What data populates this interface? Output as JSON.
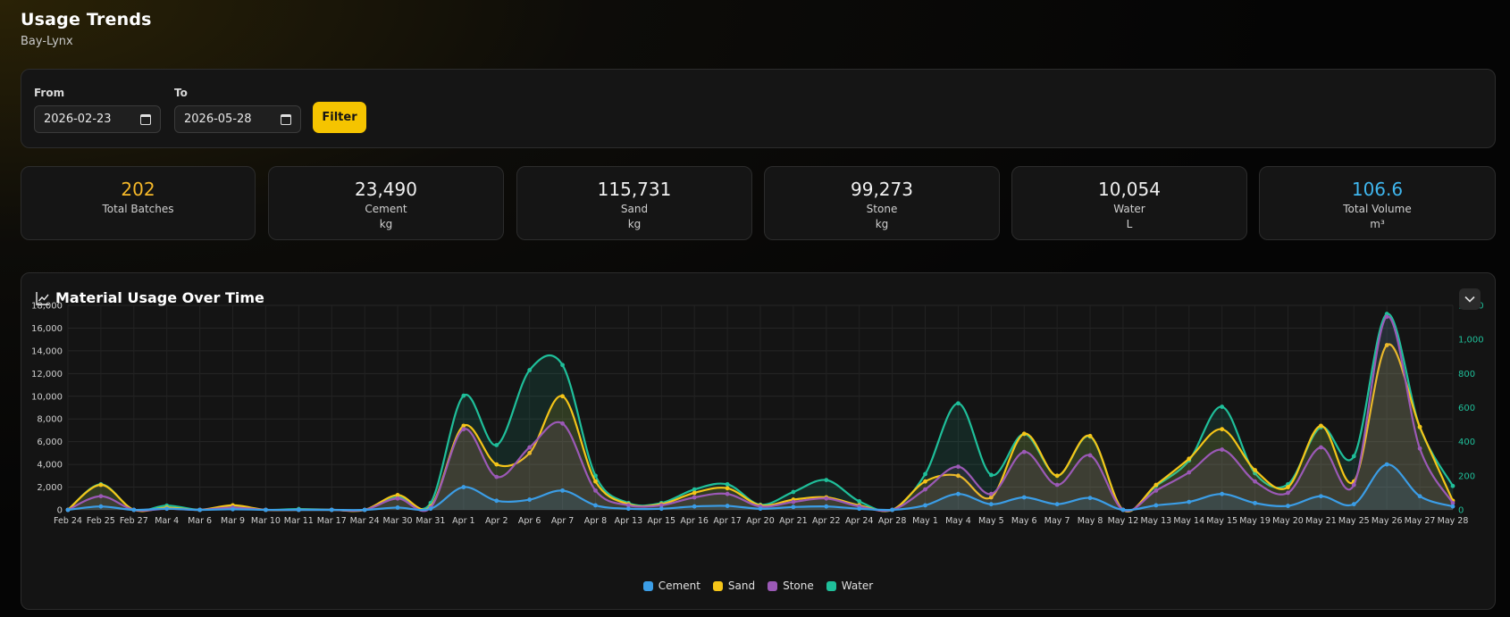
{
  "header": {
    "title": "Usage Trends",
    "subtitle": "Bay-Lynx"
  },
  "filter": {
    "from_label": "From",
    "from_value": "2026-02-23",
    "to_label": "To",
    "to_value": "2026-05-28",
    "button_label": "Filter"
  },
  "stats": [
    {
      "value": "202",
      "label": "Total Batches",
      "unit": "",
      "color": "#f5b829"
    },
    {
      "value": "23,490",
      "label": "Cement",
      "unit": "kg",
      "color": "#f0f0f0"
    },
    {
      "value": "115,731",
      "label": "Sand",
      "unit": "kg",
      "color": "#f0f0f0"
    },
    {
      "value": "99,273",
      "label": "Stone",
      "unit": "kg",
      "color": "#f0f0f0"
    },
    {
      "value": "10,054",
      "label": "Water",
      "unit": "L",
      "color": "#f0f0f0"
    },
    {
      "value": "106.6",
      "label": "Total Volume",
      "unit": "m³",
      "color": "#3fb6ee"
    }
  ],
  "chart_card": {
    "title": "Material Usage Over Time"
  },
  "chart_data": {
    "type": "area",
    "categories": [
      "Feb 24",
      "Feb 25",
      "Feb 27",
      "Mar 4",
      "Mar 6",
      "Mar 9",
      "Mar 10",
      "Mar 11",
      "Mar 17",
      "Mar 24",
      "Mar 30",
      "Mar 31",
      "Apr 1",
      "Apr 2",
      "Apr 6",
      "Apr 7",
      "Apr 8",
      "Apr 13",
      "Apr 15",
      "Apr 16",
      "Apr 17",
      "Apr 20",
      "Apr 21",
      "Apr 22",
      "Apr 24",
      "Apr 28",
      "May 1",
      "May 4",
      "May 5",
      "May 6",
      "May 7",
      "May 8",
      "May 12",
      "May 13",
      "May 14",
      "May 15",
      "May 19",
      "May 20",
      "May 21",
      "May 25",
      "May 26",
      "May 27",
      "May 28"
    ],
    "y_left": {
      "min": 0,
      "max": 18000,
      "ticks": [
        "0",
        "2,000",
        "4,000",
        "6,000",
        "8,000",
        "10,000",
        "12,000",
        "14,000",
        "16,000",
        "18,000"
      ]
    },
    "y_right": {
      "min": 0,
      "max": 1200,
      "ticks": [
        "0",
        "200",
        "400",
        "600",
        "800",
        "1,000",
        "1,200"
      ]
    },
    "grid": true,
    "legend_position": "bottom",
    "series": [
      {
        "name": "Cement",
        "axis": "left",
        "color": "#3b9de6",
        "values": [
          0,
          300,
          0,
          100,
          0,
          50,
          0,
          0,
          0,
          0,
          200,
          100,
          2000,
          800,
          900,
          1700,
          400,
          100,
          100,
          300,
          350,
          100,
          250,
          300,
          100,
          0,
          400,
          1400,
          500,
          1100,
          500,
          1050,
          0,
          400,
          700,
          1400,
          600,
          350,
          1200,
          500,
          4000,
          1200,
          300
        ]
      },
      {
        "name": "Sand",
        "axis": "left",
        "color": "#f5c518",
        "values": [
          0,
          2200,
          0,
          200,
          0,
          400,
          0,
          0,
          0,
          0,
          1300,
          300,
          7400,
          4000,
          5000,
          10000,
          2500,
          500,
          500,
          1500,
          1900,
          400,
          900,
          1100,
          400,
          0,
          2500,
          3000,
          1100,
          6700,
          3000,
          6500,
          0,
          2200,
          4500,
          7100,
          3500,
          2000,
          7400,
          2500,
          14500,
          7300,
          800
        ]
      },
      {
        "name": "Stone",
        "axis": "left",
        "color": "#9b59b6",
        "values": [
          0,
          1200,
          0,
          100,
          0,
          200,
          0,
          0,
          0,
          0,
          1000,
          200,
          7100,
          2900,
          5500,
          7600,
          1700,
          400,
          400,
          1100,
          1400,
          300,
          700,
          1000,
          300,
          0,
          1800,
          3800,
          1400,
          5100,
          2200,
          4800,
          0,
          1700,
          3300,
          5300,
          2500,
          1500,
          5500,
          2200,
          17000,
          5400,
          600
        ]
      },
      {
        "name": "Water",
        "axis": "right",
        "color": "#1fbf9a",
        "values": [
          0,
          150,
          0,
          25,
          0,
          15,
          0,
          5,
          0,
          0,
          75,
          40,
          670,
          380,
          820,
          850,
          200,
          40,
          40,
          120,
          150,
          30,
          105,
          175,
          50,
          0,
          210,
          625,
          205,
          445,
          200,
          430,
          0,
          140,
          290,
          605,
          215,
          150,
          485,
          315,
          1150,
          485,
          140
        ]
      }
    ]
  }
}
